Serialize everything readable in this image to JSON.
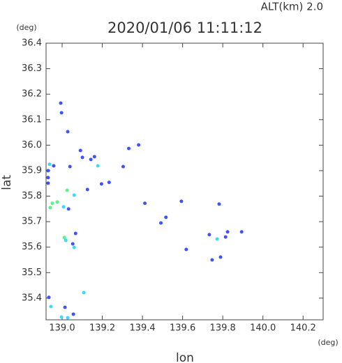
{
  "chart_data": {
    "type": "scatter",
    "title": "2020/01/06 11:11:12",
    "subtitle": "ALT(km)  2.0",
    "x_label": "lon",
    "y_label": "lat",
    "x_unit": "(deg)",
    "y_unit": "(deg)",
    "xlim": [
      138.92,
      140.3
    ],
    "ylim": [
      35.315,
      36.4
    ],
    "xticks": [
      {
        "value": 139,
        "label": "139.0"
      },
      139.2,
      139.4,
      139.6,
      139.8,
      {
        "value": 140,
        "label": "140.0"
      },
      140.2
    ],
    "yticks": [
      35.4,
      35.5,
      35.6,
      35.7,
      35.8,
      35.9,
      {
        "value": 36,
        "label": "36.0"
      },
      36.1,
      36.2,
      36.3,
      36.4
    ],
    "grid": false,
    "series": [
      {
        "color": "#3f52ff",
        "x": [
          138.993,
          138.997,
          139.028,
          138.93,
          138.93,
          138.93,
          138.958,
          139.039,
          139.091,
          139.101,
          139.143,
          139.161,
          139.126,
          139.032,
          139.067,
          139.053,
          138.934,
          139.014,
          139.056,
          139.304,
          139.381,
          139.332,
          139.412,
          139.492,
          139.517,
          139.594,
          139.618,
          139.733,
          139.814,
          139.824,
          139.747,
          139.789,
          139.782,
          139.894,
          139.196,
          139.234
        ],
        "values": [
          36.165,
          36.127,
          36.053,
          35.9,
          35.873,
          35.851,
          35.919,
          35.916,
          35.979,
          35.952,
          35.944,
          35.955,
          35.826,
          35.75,
          35.654,
          35.613,
          35.403,
          35.364,
          35.337,
          35.916,
          36.001,
          35.987,
          35.772,
          35.695,
          35.717,
          35.78,
          35.591,
          35.649,
          35.64,
          35.66,
          35.55,
          35.561,
          35.769,
          35.66,
          35.848,
          35.854
        ]
      },
      {
        "color": "#3fd7ff",
        "x": [
          138.937,
          139.178,
          139.06,
          139.007,
          139.018,
          139.06,
          139.108,
          138.944,
          139.028,
          138.997,
          139.772
        ],
        "values": [
          35.925,
          35.919,
          35.804,
          35.758,
          35.627,
          35.599,
          35.422,
          35.367,
          35.323,
          35.326,
          35.632
        ]
      },
      {
        "color": "#5ef08a",
        "x": [
          139.025,
          138.951,
          138.976,
          138.941,
          139.011
        ],
        "values": [
          35.823,
          35.772,
          35.777,
          35.755,
          35.638
        ]
      }
    ]
  }
}
